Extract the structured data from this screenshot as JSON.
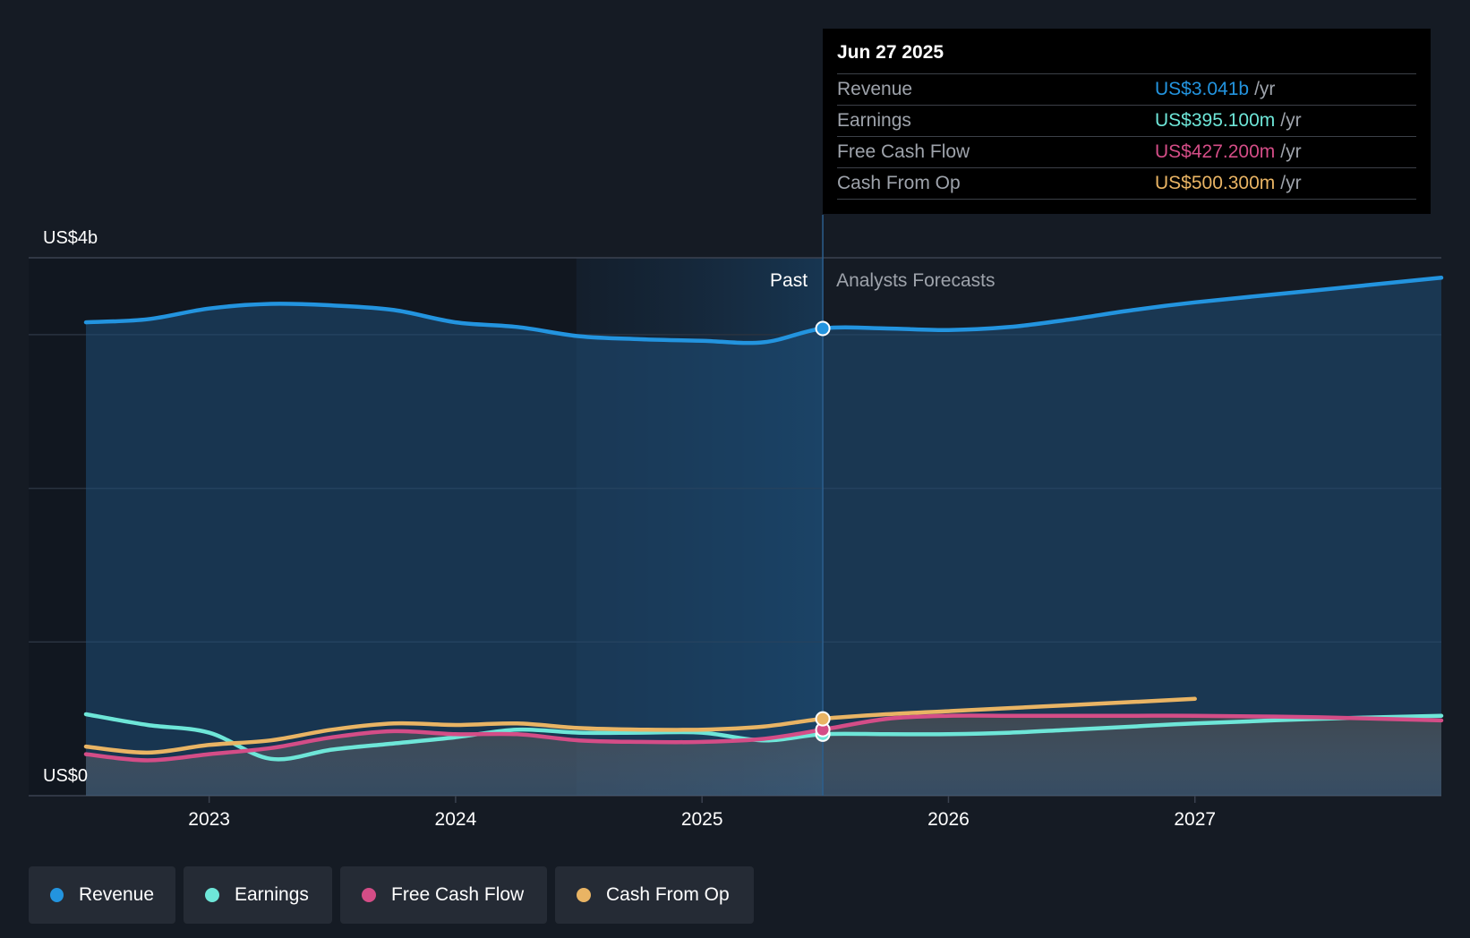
{
  "colors": {
    "revenue": "#2394df",
    "earnings": "#6ee6d8",
    "free_cash_flow": "#d44d87",
    "cash_from_op": "#e9b464",
    "background": "#151b24"
  },
  "tooltip": {
    "date": "Jun 27 2025",
    "rows": [
      {
        "label": "Revenue",
        "value": "US$3.041b",
        "unit": "/yr"
      },
      {
        "label": "Earnings",
        "value": "US$395.100m",
        "unit": "/yr"
      },
      {
        "label": "Free Cash Flow",
        "value": "US$427.200m",
        "unit": "/yr"
      },
      {
        "label": "Cash From Op",
        "value": "US$500.300m",
        "unit": "/yr"
      }
    ]
  },
  "legend": [
    {
      "label": "Revenue",
      "color": "#2394df"
    },
    {
      "label": "Earnings",
      "color": "#6ee6d8"
    },
    {
      "label": "Free Cash Flow",
      "color": "#d44d87"
    },
    {
      "label": "Cash From Op",
      "color": "#e9b464"
    }
  ],
  "chart_data": {
    "type": "line",
    "title": "",
    "xlabel": "",
    "ylabel": "",
    "x_range": [
      2022.5,
      2028.0
    ],
    "ylim": [
      0,
      3.5
    ],
    "y_axis_labels": [
      {
        "value": 3.5,
        "text": "US$4b"
      },
      {
        "value": 0,
        "text": "US$0"
      }
    ],
    "x_ticks": [
      {
        "value": 2023,
        "label": "2023"
      },
      {
        "value": 2024,
        "label": "2024"
      },
      {
        "value": 2025,
        "label": "2025"
      },
      {
        "value": 2026,
        "label": "2026"
      },
      {
        "value": 2027,
        "label": "2027"
      }
    ],
    "gridlines": [
      1.0,
      2.0,
      3.0
    ],
    "past_label": "Past",
    "forecast_label": "Analysts Forecasts",
    "divider_x": 2025.49,
    "highlight_start_x": 2024.49,
    "series": [
      {
        "name": "Revenue",
        "key": "revenue",
        "points": [
          [
            2022.5,
            3.08
          ],
          [
            2022.75,
            3.1
          ],
          [
            2023.0,
            3.17
          ],
          [
            2023.25,
            3.2
          ],
          [
            2023.5,
            3.19
          ],
          [
            2023.75,
            3.16
          ],
          [
            2024.0,
            3.08
          ],
          [
            2024.25,
            3.05
          ],
          [
            2024.5,
            2.99
          ],
          [
            2024.75,
            2.97
          ],
          [
            2025.0,
            2.96
          ],
          [
            2025.25,
            2.95
          ],
          [
            2025.49,
            3.04
          ],
          [
            2025.75,
            3.04
          ],
          [
            2026.0,
            3.03
          ],
          [
            2026.25,
            3.05
          ],
          [
            2026.5,
            3.1
          ],
          [
            2026.75,
            3.16
          ],
          [
            2027.0,
            3.21
          ],
          [
            2027.5,
            3.29
          ],
          [
            2028.0,
            3.37
          ]
        ]
      },
      {
        "name": "Earnings",
        "key": "earnings",
        "points": [
          [
            2022.5,
            0.53
          ],
          [
            2022.75,
            0.46
          ],
          [
            2023.0,
            0.41
          ],
          [
            2023.25,
            0.24
          ],
          [
            2023.5,
            0.3
          ],
          [
            2023.75,
            0.34
          ],
          [
            2024.0,
            0.38
          ],
          [
            2024.25,
            0.43
          ],
          [
            2024.5,
            0.41
          ],
          [
            2024.75,
            0.41
          ],
          [
            2025.0,
            0.41
          ],
          [
            2025.25,
            0.36
          ],
          [
            2025.49,
            0.4
          ],
          [
            2025.75,
            0.4
          ],
          [
            2026.0,
            0.4
          ],
          [
            2026.25,
            0.41
          ],
          [
            2026.5,
            0.43
          ],
          [
            2026.75,
            0.45
          ],
          [
            2027.0,
            0.47
          ],
          [
            2027.5,
            0.5
          ],
          [
            2028.0,
            0.52
          ]
        ]
      },
      {
        "name": "Free Cash Flow",
        "key": "free_cash_flow",
        "points": [
          [
            2022.5,
            0.27
          ],
          [
            2022.75,
            0.23
          ],
          [
            2023.0,
            0.27
          ],
          [
            2023.25,
            0.31
          ],
          [
            2023.5,
            0.38
          ],
          [
            2023.75,
            0.42
          ],
          [
            2024.0,
            0.4
          ],
          [
            2024.25,
            0.4
          ],
          [
            2024.5,
            0.36
          ],
          [
            2024.75,
            0.35
          ],
          [
            2025.0,
            0.35
          ],
          [
            2025.25,
            0.37
          ],
          [
            2025.49,
            0.43
          ],
          [
            2025.75,
            0.5
          ],
          [
            2026.0,
            0.52
          ],
          [
            2026.25,
            0.52
          ],
          [
            2026.5,
            0.52
          ],
          [
            2026.75,
            0.52
          ],
          [
            2027.0,
            0.52
          ],
          [
            2027.5,
            0.51
          ],
          [
            2028.0,
            0.49
          ]
        ]
      },
      {
        "name": "Cash From Op",
        "key": "cash_from_op",
        "points": [
          [
            2022.5,
            0.32
          ],
          [
            2022.75,
            0.28
          ],
          [
            2023.0,
            0.33
          ],
          [
            2023.25,
            0.36
          ],
          [
            2023.5,
            0.43
          ],
          [
            2023.75,
            0.47
          ],
          [
            2024.0,
            0.46
          ],
          [
            2024.25,
            0.47
          ],
          [
            2024.5,
            0.44
          ],
          [
            2024.75,
            0.43
          ],
          [
            2025.0,
            0.43
          ],
          [
            2025.25,
            0.45
          ],
          [
            2025.49,
            0.5
          ],
          [
            2025.75,
            0.53
          ],
          [
            2026.0,
            0.55
          ],
          [
            2026.25,
            0.57
          ],
          [
            2026.5,
            0.59
          ],
          [
            2026.75,
            0.61
          ],
          [
            2027.0,
            0.63
          ]
        ]
      }
    ]
  }
}
